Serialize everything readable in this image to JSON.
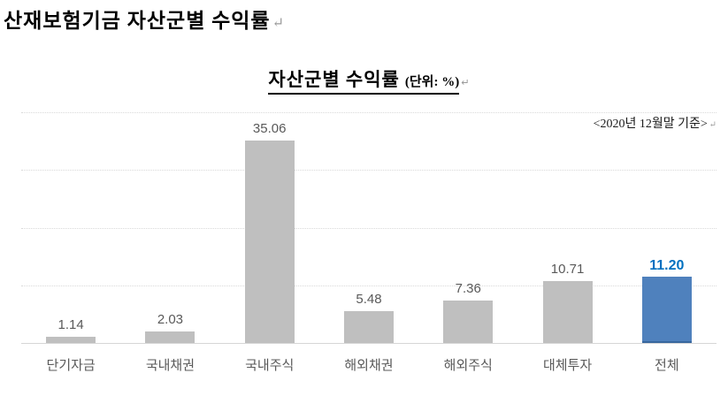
{
  "return_mark": "↵",
  "header": {
    "title": "산재보험기금 자산군별 수익률"
  },
  "chart": {
    "title": "자산군별 수익률",
    "title_unit": "(단위: %)",
    "period_note": "<2020년 12월말 기준>"
  },
  "chart_data": {
    "type": "bar",
    "title": "자산군별 수익률 (단위: %)",
    "subtitle": "<2020년 12월말 기준>",
    "categories": [
      "단기자금",
      "국내채권",
      "국내주식",
      "해외채권",
      "해외주식",
      "대체투자",
      "전체"
    ],
    "values": [
      1.14,
      2.03,
      35.06,
      5.48,
      7.36,
      10.71,
      11.2
    ],
    "value_labels": [
      "1.14",
      "2.03",
      "35.06",
      "5.48",
      "7.36",
      "10.71",
      "11.20"
    ],
    "highlight_index": 6,
    "xlabel": "",
    "ylabel": "",
    "ylim": [
      0,
      40
    ],
    "gridline_step": 10,
    "grid": true,
    "legend": false,
    "colors": {
      "bar": "#bfbfbf",
      "highlight_bar": "#4f81bd",
      "highlight_edge": "#38679e",
      "highlight_label": "#0070c0",
      "label": "#595959",
      "gridline": "#d9d9d9",
      "axis": "#d6d6d6"
    }
  }
}
